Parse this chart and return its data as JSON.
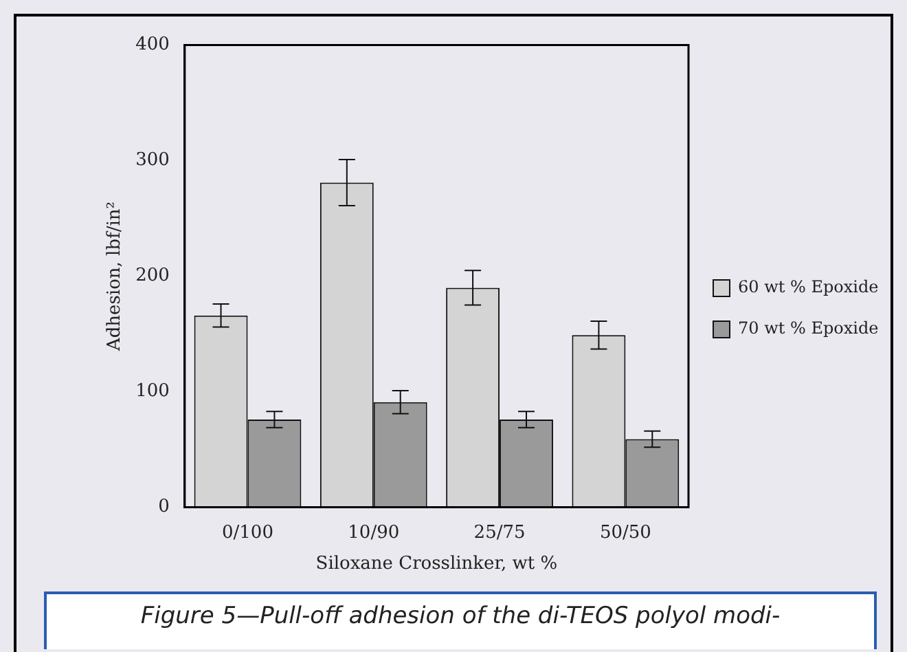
{
  "chart_data": {
    "type": "bar",
    "xlabel": "Siloxane Crosslinker, wt %",
    "ylabel": "Adhesion, lbf/in²",
    "categories": [
      "0/100",
      "10/90",
      "25/75",
      "50/50"
    ],
    "series": [
      {
        "name": "60 wt % Epoxide",
        "color": "#d4d4d4",
        "values": [
          166,
          281,
          190,
          149
        ],
        "errors": [
          10,
          20,
          15,
          12
        ]
      },
      {
        "name": "70 wt % Epoxide",
        "color": "#9a9a9a",
        "values": [
          76,
          91,
          76,
          59
        ],
        "errors": [
          7,
          10,
          7,
          7
        ]
      }
    ],
    "ylim": [
      0,
      400
    ],
    "yticks": [
      0,
      100,
      200,
      300,
      400
    ],
    "grid": false,
    "legend": "right",
    "annotations": [
      "Figure 5—Pull-off adhesion of the di-TEOS polyol modi-"
    ]
  }
}
